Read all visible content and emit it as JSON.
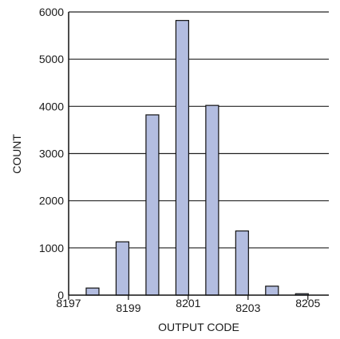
{
  "chart_data": {
    "type": "bar",
    "xlabel": "OUTPUT CODE",
    "ylabel": "COUNT",
    "xlim": [
      8197,
      8205.7
    ],
    "ylim": [
      0,
      6000
    ],
    "x_ticks": [
      8197,
      8199,
      8201,
      8203,
      8205
    ],
    "x_tick_labels": [
      "8197",
      "8199",
      "8201",
      "8203",
      "8205"
    ],
    "y_ticks": [
      0,
      1000,
      2000,
      3000,
      4000,
      5000,
      6000
    ],
    "y_tick_labels": [
      "0",
      "1000",
      "2000",
      "3000",
      "4000",
      "5000",
      "6000"
    ],
    "grid": "horizontal",
    "bar_color": "#b3bde0",
    "bar_edge_color": "#111111",
    "x": [
      8197.8,
      8198.8,
      8199.8,
      8200.8,
      8201.8,
      8202.8,
      8203.8,
      8204.8
    ],
    "values": [
      150,
      1130,
      3820,
      5820,
      4020,
      1360,
      190,
      30
    ]
  }
}
